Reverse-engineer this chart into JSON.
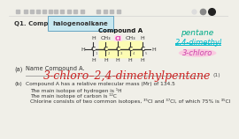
{
  "bg_color": "#f0efe8",
  "q1_text_pre": "Q1. Compound A is a ",
  "q1_highlight": "halogenoalkane",
  "q1_text_post": ".",
  "compound_a_label": "Compound A",
  "side_note_pentane": "pentane",
  "side_note_dimethyl": "2,4-dimethyl",
  "side_note_chloro": "3-chloro",
  "part_a_label": "(a)",
  "part_a_text": "Name Compound A.",
  "answer_text": "3-chloro–2,4-dimethylpentane",
  "mark_1": "(1)",
  "part_b_label": "(b)",
  "part_b_line1": "Compound A has a relative molecular mass (Mr) of 134.5",
  "part_b_line2": "The main isotope of hydrogen is ¹H",
  "part_b_line3": "The main isotope of carbon is ¹²C",
  "part_b_line4": "Chlorine consists of two common isotopes, ³⁵Cl and ³⁷Cl, of which 75% is ³⁵Cl",
  "toolbar_icon_color": "#bbbbbb",
  "toolbar_dot1": "#dddddd",
  "toolbar_dot2": "#888888",
  "toolbar_dot3": "#222222",
  "text_color": "#333333",
  "answer_color": "#cc2222",
  "pentane_color": "#00aa88",
  "dimethyl_color": "#00bbcc",
  "chloro_color": "#cc44aa",
  "highlight_yellow": "#ffffaa",
  "highlight_pink": "#ffddee",
  "highlight_blue": "#c8e8f0",
  "mol_bond_color": "#333333",
  "mol_text_color": "#333333",
  "cl_color": "#dd44aa"
}
